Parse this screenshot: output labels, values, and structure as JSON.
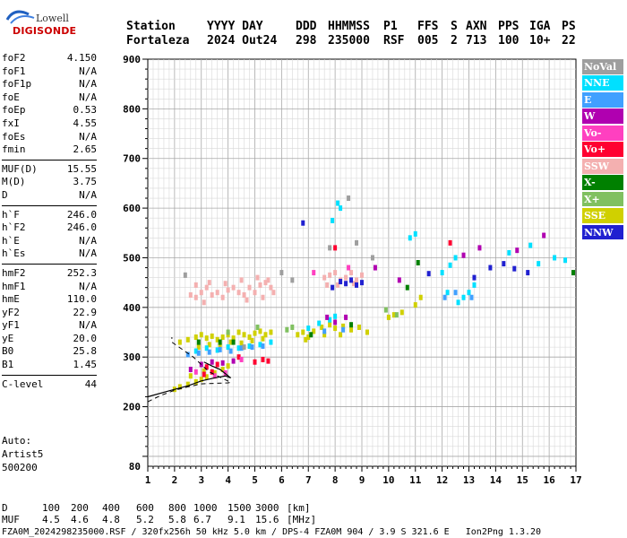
{
  "logo": {
    "brand": "Lowell",
    "product": "DIGISONDE"
  },
  "header": {
    "station_label": "Station",
    "station": "Fortaleza",
    "date_label": "YYYY DAY",
    "date": "2024 Out24",
    "ddd_label": "DDD",
    "ddd": "298",
    "time_label": "HHMMSS",
    "time": "235000",
    "p1_label": "P1",
    "p1": "RSF",
    "ffs_label": "FFS",
    "ffs": "005",
    "s_label": "S",
    "s": "2",
    "axn_label": "AXN",
    "axn": "713",
    "pps_label": "PPS",
    "pps": "100",
    "iga_label": "IGA",
    "iga": "10+",
    "ps_label": "PS",
    "ps": "22"
  },
  "params": {
    "g1": [
      {
        "label": "foF2",
        "value": "4.150"
      },
      {
        "label": "foF1",
        "value": "N/A"
      },
      {
        "label": "foF1p",
        "value": "N/A"
      },
      {
        "label": "foE",
        "value": "N/A"
      },
      {
        "label": "foEp",
        "value": "0.53"
      },
      {
        "label": "fxI",
        "value": "4.55"
      },
      {
        "label": "foEs",
        "value": "N/A"
      },
      {
        "label": "fmin",
        "value": "2.65"
      }
    ],
    "g2": [
      {
        "label": "MUF(D)",
        "value": "15.55"
      },
      {
        "label": "M(D)",
        "value": "3.75"
      },
      {
        "label": "D",
        "value": "N/A"
      }
    ],
    "g3": [
      {
        "label": "h`F",
        "value": "246.0"
      },
      {
        "label": "h`F2",
        "value": "246.0"
      },
      {
        "label": "h`E",
        "value": "N/A"
      },
      {
        "label": "h`Es",
        "value": "N/A"
      }
    ],
    "g4": [
      {
        "label": "hmF2",
        "value": "252.3"
      },
      {
        "label": "hmF1",
        "value": "N/A"
      },
      {
        "label": "hmE",
        "value": "110.0"
      },
      {
        "label": "yF2",
        "value": "22.9"
      },
      {
        "label": "yF1",
        "value": "N/A"
      },
      {
        "label": "yE",
        "value": "20.0"
      },
      {
        "label": "B0",
        "value": "25.8"
      },
      {
        "label": "B1",
        "value": "1.45"
      }
    ],
    "g5": [
      {
        "label": "C-level",
        "value": "44"
      }
    ]
  },
  "auto": {
    "line1": "Auto:",
    "line2": "Artist5",
    "line3": "500200"
  },
  "legend": [
    {
      "label": "NoVal",
      "color": "#9e9e9e"
    },
    {
      "label": "NNE",
      "color": "#00e0ff"
    },
    {
      "label": "E",
      "color": "#40a0ff"
    },
    {
      "label": "W",
      "color": "#b000b0"
    },
    {
      "label": "Vo-",
      "color": "#ff40c0"
    },
    {
      "label": "Vo+",
      "color": "#ff0030"
    },
    {
      "label": "SSW",
      "color": "#f4b0b0"
    },
    {
      "label": "X-",
      "color": "#008000"
    },
    {
      "label": "X+",
      "color": "#80c060"
    },
    {
      "label": "SSE",
      "color": "#d0d000"
    },
    {
      "label": "NNW",
      "color": "#2020d0"
    }
  ],
  "footer": {
    "d_label": "D",
    "d_values": [
      "100",
      "200",
      "400",
      "600",
      "800",
      "1000",
      "1500",
      "3000"
    ],
    "d_unit": "[km]",
    "muf_label": "MUF",
    "muf_values": [
      "4.5",
      "4.6",
      "4.8",
      "5.2",
      "5.8",
      "6.7",
      "9.1",
      "15.6"
    ],
    "muf_unit": "[MHz]",
    "file_line": "FZA0M_2024298235000.RSF / 320fx256h 50 kHz 5.0 km / DPS-4 FZA0M 904 / 3.9 S 321.6 E   Ion2Png 1.3.20"
  },
  "chart_data": {
    "type": "scatter",
    "xlim": [
      1,
      17
    ],
    "ylim": [
      80,
      900
    ],
    "x_ticks": [
      "1",
      "2",
      "3",
      "4",
      "5",
      "6",
      "7",
      "8",
      "9",
      "10",
      "11",
      "12",
      "13",
      "14",
      "15",
      "16",
      "17"
    ],
    "y_ticks": [
      {
        "value": 80,
        "label": "80"
      },
      {
        "value": 200,
        "label": "200"
      },
      {
        "value": 300,
        "label": "300"
      },
      {
        "value": 400,
        "label": "400"
      },
      {
        "value": 500,
        "label": "500"
      },
      {
        "value": 600,
        "label": "600"
      },
      {
        "value": 700,
        "label": "700"
      },
      {
        "value": 800,
        "label": "800"
      },
      {
        "value": 900,
        "label": "900"
      }
    ],
    "grid": true,
    "clusters": [
      {
        "color": "#f4b0b0",
        "points": [
          [
            2.6,
            425
          ],
          [
            2.8,
            420
          ],
          [
            3.0,
            430
          ],
          [
            3.2,
            440
          ],
          [
            3.4,
            425
          ],
          [
            3.6,
            430
          ],
          [
            3.8,
            420
          ],
          [
            4.0,
            435
          ],
          [
            4.2,
            440
          ],
          [
            4.4,
            430
          ],
          [
            4.6,
            425
          ],
          [
            4.8,
            440
          ],
          [
            5.0,
            430
          ],
          [
            5.2,
            445
          ],
          [
            5.4,
            450
          ],
          [
            5.6,
            440
          ],
          [
            2.8,
            445
          ],
          [
            3.3,
            450
          ],
          [
            3.9,
            448
          ],
          [
            4.5,
            455
          ],
          [
            5.1,
            460
          ],
          [
            5.5,
            455
          ],
          [
            7.6,
            460
          ],
          [
            7.8,
            465
          ],
          [
            8.0,
            470
          ],
          [
            8.2,
            455
          ],
          [
            8.4,
            460
          ],
          [
            8.6,
            470
          ],
          [
            8.8,
            455
          ],
          [
            9.0,
            465
          ],
          [
            7.7,
            445
          ],
          [
            8.1,
            445
          ],
          [
            8.7,
            448
          ],
          [
            5.3,
            420
          ],
          [
            5.7,
            430
          ],
          [
            3.1,
            410
          ],
          [
            4.7,
            415
          ]
        ]
      },
      {
        "color": "#d0d000",
        "points": [
          [
            2.2,
            330
          ],
          [
            2.5,
            335
          ],
          [
            2.8,
            340
          ],
          [
            3.0,
            345
          ],
          [
            3.2,
            338
          ],
          [
            3.4,
            342
          ],
          [
            3.6,
            335
          ],
          [
            3.8,
            340
          ],
          [
            4.0,
            345
          ],
          [
            4.2,
            338
          ],
          [
            4.4,
            350
          ],
          [
            4.6,
            345
          ],
          [
            4.8,
            340
          ],
          [
            5.0,
            348
          ],
          [
            5.2,
            352
          ],
          [
            5.4,
            345
          ],
          [
            5.6,
            350
          ],
          [
            2.9,
            320
          ],
          [
            3.3,
            325
          ],
          [
            3.7,
            322
          ],
          [
            4.1,
            330
          ],
          [
            4.5,
            328
          ],
          [
            4.9,
            333
          ],
          [
            5.3,
            337
          ],
          [
            6.6,
            345
          ],
          [
            6.8,
            350
          ],
          [
            7.0,
            340
          ],
          [
            7.2,
            352
          ],
          [
            7.5,
            360
          ],
          [
            7.8,
            365
          ],
          [
            8.0,
            358
          ],
          [
            8.3,
            362
          ],
          [
            8.6,
            355
          ],
          [
            8.9,
            360
          ],
          [
            9.2,
            350
          ],
          [
            6.9,
            335
          ],
          [
            7.6,
            345
          ],
          [
            8.2,
            345
          ],
          [
            10.0,
            380
          ],
          [
            10.2,
            385
          ],
          [
            10.5,
            390
          ],
          [
            11.2,
            420
          ],
          [
            11.0,
            405
          ],
          [
            2.0,
            235
          ],
          [
            2.2,
            240
          ],
          [
            2.5,
            245
          ],
          [
            2.8,
            250
          ],
          [
            3.0,
            255
          ],
          [
            3.2,
            260
          ],
          [
            3.5,
            268
          ],
          [
            3.8,
            275
          ],
          [
            4.0,
            282
          ],
          [
            2.6,
            262
          ],
          [
            3.1,
            272
          ]
        ]
      },
      {
        "color": "#00e0ff",
        "points": [
          [
            2.8,
            312
          ],
          [
            3.2,
            318
          ],
          [
            3.6,
            314
          ],
          [
            4.0,
            320
          ],
          [
            4.4,
            318
          ],
          [
            4.8,
            322
          ],
          [
            5.2,
            325
          ],
          [
            5.6,
            330
          ],
          [
            7.0,
            358
          ],
          [
            7.4,
            368
          ],
          [
            7.8,
            375
          ],
          [
            8.0,
            382
          ],
          [
            8.2,
            600
          ],
          [
            8.1,
            610
          ],
          [
            7.9,
            575
          ],
          [
            10.8,
            540
          ],
          [
            11.0,
            548
          ],
          [
            12.0,
            470
          ],
          [
            12.3,
            485
          ],
          [
            12.5,
            500
          ],
          [
            12.8,
            420
          ],
          [
            13.0,
            430
          ],
          [
            13.2,
            445
          ],
          [
            12.2,
            430
          ],
          [
            12.6,
            410
          ],
          [
            14.5,
            510
          ],
          [
            15.3,
            525
          ],
          [
            15.6,
            488
          ],
          [
            16.2,
            500
          ],
          [
            16.6,
            495
          ]
        ]
      },
      {
        "color": "#40a0ff",
        "points": [
          [
            2.5,
            305
          ],
          [
            2.9,
            308
          ],
          [
            3.3,
            310
          ],
          [
            3.7,
            315
          ],
          [
            4.1,
            312
          ],
          [
            4.5,
            318
          ],
          [
            4.9,
            320
          ],
          [
            5.3,
            322
          ],
          [
            7.6,
            352
          ],
          [
            8.3,
            355
          ],
          [
            12.1,
            420
          ],
          [
            12.5,
            430
          ],
          [
            13.1,
            420
          ]
        ]
      },
      {
        "color": "#2020d0",
        "points": [
          [
            8.2,
            452
          ],
          [
            8.4,
            448
          ],
          [
            8.6,
            455
          ],
          [
            8.8,
            445
          ],
          [
            9.0,
            450
          ],
          [
            7.9,
            440
          ],
          [
            6.8,
            570
          ],
          [
            13.2,
            460
          ],
          [
            14.3,
            488
          ],
          [
            14.7,
            478
          ],
          [
            15.2,
            470
          ],
          [
            13.8,
            480
          ],
          [
            11.5,
            468
          ]
        ]
      },
      {
        "color": "#b000b0",
        "points": [
          [
            3.0,
            285
          ],
          [
            3.4,
            290
          ],
          [
            3.8,
            288
          ],
          [
            4.2,
            292
          ],
          [
            2.6,
            275
          ],
          [
            8.0,
            370
          ],
          [
            7.7,
            380
          ],
          [
            8.4,
            380
          ],
          [
            12.8,
            505
          ],
          [
            13.4,
            520
          ],
          [
            14.8,
            515
          ],
          [
            15.8,
            545
          ],
          [
            9.5,
            480
          ],
          [
            10.4,
            455
          ]
        ]
      },
      {
        "color": "#ff0030",
        "points": [
          [
            3.2,
            280
          ],
          [
            3.6,
            285
          ],
          [
            5.0,
            290
          ],
          [
            5.3,
            295
          ],
          [
            5.5,
            292
          ],
          [
            4.4,
            300
          ],
          [
            3.1,
            265
          ],
          [
            3.4,
            270
          ],
          [
            8.0,
            520
          ],
          [
            12.3,
            530
          ]
        ]
      },
      {
        "color": "#ff40c0",
        "points": [
          [
            3.5,
            262
          ],
          [
            3.9,
            268
          ],
          [
            4.5,
            295
          ],
          [
            2.8,
            270
          ],
          [
            8.5,
            480
          ],
          [
            7.2,
            470
          ]
        ]
      },
      {
        "color": "#008000",
        "points": [
          [
            4.2,
            330
          ],
          [
            3.7,
            330
          ],
          [
            2.9,
            330
          ],
          [
            8.6,
            365
          ],
          [
            10.7,
            440
          ],
          [
            11.1,
            490
          ],
          [
            16.9,
            470
          ],
          [
            7.1,
            345
          ]
        ]
      },
      {
        "color": "#80c060",
        "points": [
          [
            4.0,
            350
          ],
          [
            5.1,
            360
          ],
          [
            6.2,
            355
          ],
          [
            6.4,
            360
          ],
          [
            9.9,
            395
          ],
          [
            10.3,
            385
          ]
        ]
      },
      {
        "color": "#9e9e9e",
        "points": [
          [
            6.0,
            470
          ],
          [
            6.4,
            455
          ],
          [
            7.8,
            520
          ],
          [
            8.8,
            530
          ],
          [
            9.4,
            500
          ],
          [
            2.4,
            465
          ],
          [
            4.6,
            320
          ],
          [
            8.5,
            620
          ]
        ]
      }
    ],
    "trace_solid": [
      [
        1.0,
        220
      ],
      [
        1.8,
        232
      ],
      [
        2.5,
        242
      ],
      [
        3.0,
        252
      ],
      [
        3.5,
        258
      ],
      [
        3.9,
        262
      ],
      [
        4.1,
        258
      ],
      [
        3.7,
        275
      ],
      [
        3.4,
        282
      ],
      [
        3.1,
        290
      ]
    ],
    "trace_dashed": [
      [
        1.0,
        210
      ],
      [
        1.5,
        223
      ],
      [
        2.0,
        233
      ],
      [
        2.5,
        240
      ],
      [
        3.0,
        246
      ],
      [
        3.5,
        247
      ],
      [
        4.0,
        248
      ],
      [
        4.1,
        249
      ],
      [
        3.3,
        270
      ],
      [
        2.7,
        300
      ],
      [
        1.9,
        330
      ],
      [
        1.9,
        340
      ]
    ]
  }
}
